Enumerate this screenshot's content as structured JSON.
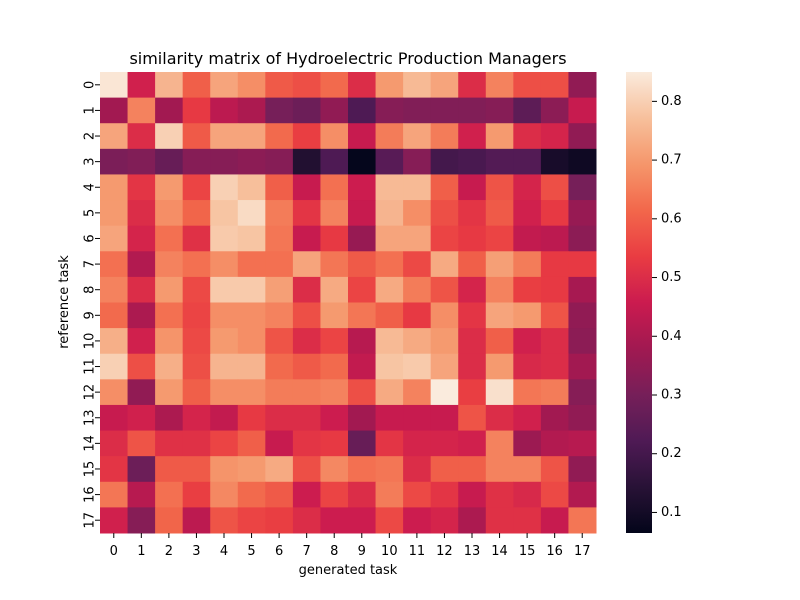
{
  "chart_data": {
    "type": "heatmap",
    "title": "similarity matrix of Hydroelectric Production Managers",
    "xlabel": "generated task",
    "ylabel": "reference task",
    "x_categories": [
      "0",
      "1",
      "2",
      "3",
      "4",
      "5",
      "6",
      "7",
      "8",
      "9",
      "10",
      "11",
      "12",
      "13",
      "14",
      "15",
      "16",
      "17"
    ],
    "y_categories": [
      "0",
      "1",
      "2",
      "3",
      "4",
      "5",
      "6",
      "7",
      "8",
      "9",
      "10",
      "11",
      "12",
      "13",
      "14",
      "15",
      "16",
      "17"
    ],
    "value_range": [
      0.065,
      0.85
    ],
    "colormap": "rocket",
    "colorbar_ticks": [
      0.1,
      0.2,
      0.3,
      0.4,
      0.5,
      0.6,
      0.7,
      0.8
    ],
    "colorbar_tick_labels": [
      "0.1",
      "0.2",
      "0.3",
      "0.4",
      "0.5",
      "0.6",
      "0.7",
      "0.8"
    ],
    "values": [
      [
        0.84,
        0.47,
        0.75,
        0.6,
        0.72,
        0.68,
        0.59,
        0.57,
        0.62,
        0.5,
        0.7,
        0.76,
        0.72,
        0.5,
        0.66,
        0.57,
        0.57,
        0.35
      ],
      [
        0.38,
        0.66,
        0.38,
        0.53,
        0.43,
        0.4,
        0.3,
        0.28,
        0.35,
        0.22,
        0.33,
        0.32,
        0.32,
        0.32,
        0.33,
        0.25,
        0.34,
        0.45
      ],
      [
        0.72,
        0.5,
        0.8,
        0.59,
        0.72,
        0.72,
        0.62,
        0.54,
        0.68,
        0.45,
        0.65,
        0.72,
        0.65,
        0.47,
        0.7,
        0.5,
        0.48,
        0.35
      ],
      [
        0.31,
        0.32,
        0.27,
        0.33,
        0.33,
        0.34,
        0.33,
        0.13,
        0.22,
        0.07,
        0.24,
        0.33,
        0.2,
        0.21,
        0.23,
        0.23,
        0.11,
        0.09
      ],
      [
        0.7,
        0.52,
        0.7,
        0.55,
        0.8,
        0.77,
        0.6,
        0.45,
        0.63,
        0.46,
        0.76,
        0.76,
        0.6,
        0.45,
        0.58,
        0.48,
        0.57,
        0.3
      ],
      [
        0.7,
        0.5,
        0.68,
        0.61,
        0.78,
        0.82,
        0.65,
        0.52,
        0.66,
        0.45,
        0.75,
        0.68,
        0.57,
        0.52,
        0.59,
        0.47,
        0.53,
        0.36
      ],
      [
        0.72,
        0.48,
        0.63,
        0.51,
        0.79,
        0.78,
        0.64,
        0.45,
        0.53,
        0.36,
        0.72,
        0.72,
        0.55,
        0.53,
        0.55,
        0.44,
        0.43,
        0.34
      ],
      [
        0.63,
        0.41,
        0.66,
        0.63,
        0.68,
        0.63,
        0.63,
        0.72,
        0.64,
        0.59,
        0.63,
        0.56,
        0.73,
        0.6,
        0.71,
        0.65,
        0.53,
        0.53
      ],
      [
        0.66,
        0.5,
        0.7,
        0.56,
        0.79,
        0.79,
        0.71,
        0.5,
        0.73,
        0.55,
        0.73,
        0.65,
        0.58,
        0.48,
        0.66,
        0.54,
        0.53,
        0.39
      ],
      [
        0.62,
        0.4,
        0.63,
        0.55,
        0.68,
        0.68,
        0.66,
        0.57,
        0.7,
        0.64,
        0.6,
        0.53,
        0.68,
        0.52,
        0.72,
        0.7,
        0.58,
        0.35
      ],
      [
        0.74,
        0.47,
        0.69,
        0.56,
        0.7,
        0.68,
        0.58,
        0.5,
        0.55,
        0.42,
        0.76,
        0.73,
        0.7,
        0.5,
        0.6,
        0.47,
        0.5,
        0.34
      ],
      [
        0.8,
        0.57,
        0.74,
        0.57,
        0.75,
        0.75,
        0.62,
        0.59,
        0.62,
        0.44,
        0.78,
        0.79,
        0.72,
        0.5,
        0.7,
        0.49,
        0.5,
        0.38
      ],
      [
        0.68,
        0.35,
        0.7,
        0.6,
        0.68,
        0.68,
        0.65,
        0.65,
        0.66,
        0.57,
        0.73,
        0.66,
        0.85,
        0.54,
        0.83,
        0.64,
        0.65,
        0.33
      ],
      [
        0.45,
        0.47,
        0.4,
        0.48,
        0.44,
        0.53,
        0.5,
        0.5,
        0.46,
        0.38,
        0.45,
        0.45,
        0.45,
        0.58,
        0.5,
        0.47,
        0.38,
        0.35
      ],
      [
        0.5,
        0.58,
        0.51,
        0.51,
        0.55,
        0.6,
        0.45,
        0.52,
        0.53,
        0.27,
        0.52,
        0.48,
        0.48,
        0.47,
        0.66,
        0.37,
        0.41,
        0.42
      ],
      [
        0.52,
        0.28,
        0.59,
        0.59,
        0.69,
        0.7,
        0.73,
        0.57,
        0.67,
        0.63,
        0.64,
        0.5,
        0.6,
        0.6,
        0.66,
        0.66,
        0.58,
        0.35
      ],
      [
        0.64,
        0.42,
        0.63,
        0.54,
        0.67,
        0.62,
        0.59,
        0.46,
        0.55,
        0.5,
        0.65,
        0.56,
        0.52,
        0.45,
        0.51,
        0.49,
        0.56,
        0.41
      ],
      [
        0.47,
        0.33,
        0.61,
        0.43,
        0.58,
        0.55,
        0.54,
        0.5,
        0.46,
        0.46,
        0.56,
        0.46,
        0.48,
        0.4,
        0.51,
        0.51,
        0.45,
        0.64
      ]
    ]
  }
}
